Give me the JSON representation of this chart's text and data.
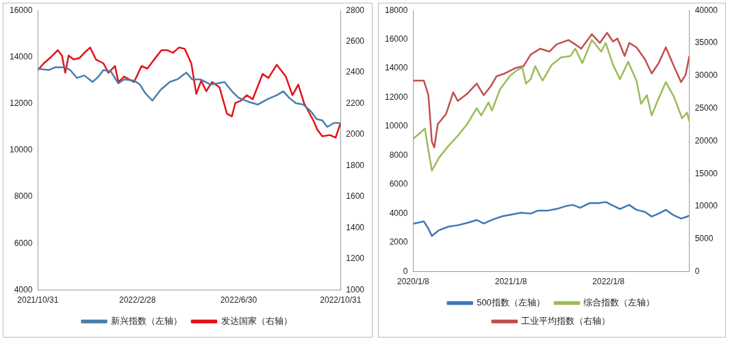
{
  "chart_data": [
    {
      "type": "line",
      "xlim": [
        "2021-10-31",
        "2022-10-31"
      ],
      "xticks": [
        {
          "value": "2021-10-31",
          "label": "2021/10/31"
        },
        {
          "value": "2022-02-28",
          "label": "2022/2/28"
        },
        {
          "value": "2022-06-30",
          "label": "2022/6/30"
        },
        {
          "value": "2022-10-31",
          "label": "2022/10/31"
        }
      ],
      "ylim": [
        4000,
        16000
      ],
      "yticks": [
        4000,
        6000,
        8000,
        10000,
        12000,
        14000,
        16000
      ],
      "y2lim": [
        1000,
        2800
      ],
      "y2ticks": [
        1000,
        1200,
        1400,
        1600,
        1800,
        2000,
        2200,
        2400,
        2600,
        2800
      ],
      "grid": false,
      "legend": "bottom",
      "series": [
        {
          "name": "新兴指数（左轴）",
          "color": "#4a7eab",
          "axis": "y",
          "x": [
            "2021-10-31",
            "2021-11-13",
            "2021-11-21",
            "2021-12-03",
            "2021-12-09",
            "2021-12-17",
            "2021-12-26",
            "2022-01-05",
            "2022-01-12",
            "2022-01-18",
            "2022-01-27",
            "2022-02-05",
            "2022-02-12",
            "2022-02-24",
            "2022-03-03",
            "2022-03-09",
            "2022-03-18",
            "2022-03-28",
            "2022-04-08",
            "2022-04-17",
            "2022-04-28",
            "2022-05-05",
            "2022-05-15",
            "2022-05-27",
            "2022-06-05",
            "2022-06-13",
            "2022-06-22",
            "2022-06-30",
            "2022-07-12",
            "2022-07-23",
            "2022-08-04",
            "2022-08-15",
            "2022-08-23",
            "2022-08-30",
            "2022-09-07",
            "2022-09-16",
            "2022-09-25",
            "2022-10-02",
            "2022-10-09",
            "2022-10-15",
            "2022-10-23",
            "2022-10-31"
          ],
          "values": [
            13500,
            13440,
            13560,
            13560,
            13440,
            13100,
            13210,
            12930,
            13160,
            13440,
            13380,
            12870,
            13040,
            12990,
            12820,
            12470,
            12130,
            12590,
            12930,
            13040,
            13330,
            13040,
            13040,
            12820,
            12870,
            12930,
            12530,
            12250,
            12080,
            11960,
            12190,
            12360,
            12530,
            12250,
            12020,
            11960,
            11680,
            11340,
            11280,
            11000,
            11170,
            11170
          ]
        },
        {
          "name": "发达国家（右轴）",
          "color": "#e3121b",
          "axis": "y2",
          "x": [
            "2021-10-31",
            "2021-11-07",
            "2021-11-16",
            "2021-11-24",
            "2021-11-29",
            "2021-12-03",
            "2021-12-07",
            "2021-12-13",
            "2021-12-20",
            "2021-12-26",
            "2022-01-02",
            "2022-01-09",
            "2022-01-18",
            "2022-01-24",
            "2022-02-01",
            "2022-02-05",
            "2022-02-12",
            "2022-02-24",
            "2022-03-05",
            "2022-03-12",
            "2022-03-19",
            "2022-03-29",
            "2022-04-05",
            "2022-04-12",
            "2022-04-19",
            "2022-04-26",
            "2022-05-04",
            "2022-05-10",
            "2022-05-16",
            "2022-05-22",
            "2022-05-29",
            "2022-06-07",
            "2022-06-16",
            "2022-06-22",
            "2022-06-26",
            "2022-07-03",
            "2022-07-10",
            "2022-07-17",
            "2022-07-29",
            "2022-08-05",
            "2022-08-15",
            "2022-08-26",
            "2022-09-03",
            "2022-09-10",
            "2022-09-17",
            "2022-09-29",
            "2022-10-03",
            "2022-10-09",
            "2022-10-18",
            "2022-10-25",
            "2022-10-31"
          ],
          "values": [
            2416,
            2459,
            2501,
            2544,
            2510,
            2399,
            2510,
            2484,
            2493,
            2527,
            2561,
            2484,
            2459,
            2399,
            2442,
            2339,
            2374,
            2339,
            2442,
            2425,
            2476,
            2544,
            2544,
            2527,
            2561,
            2553,
            2459,
            2263,
            2348,
            2280,
            2339,
            2305,
            2135,
            2118,
            2203,
            2220,
            2254,
            2228,
            2391,
            2365,
            2450,
            2374,
            2254,
            2322,
            2203,
            2083,
            2032,
            1990,
            1998,
            1981,
            2075
          ]
        }
      ]
    },
    {
      "type": "line",
      "xlim": [
        "2020-01-08",
        "2022-11-07"
      ],
      "xticks": [
        {
          "value": "2020-01-08",
          "label": "2020/1/8"
        },
        {
          "value": "2021-01-08",
          "label": "2021/1/8"
        },
        {
          "value": "2022-01-08",
          "label": "2022/1/8"
        }
      ],
      "ylim": [
        0,
        18000
      ],
      "yticks": [
        0,
        2000,
        4000,
        6000,
        8000,
        10000,
        12000,
        14000,
        16000,
        18000
      ],
      "y2lim": [
        0,
        40000
      ],
      "y2ticks": [
        0,
        5000,
        10000,
        15000,
        20000,
        25000,
        30000,
        35000,
        40000
      ],
      "grid": false,
      "legend": "bottom",
      "series": [
        {
          "name": "500指数（左轴）",
          "color": "#3f77b8",
          "axis": "y",
          "x": [
            "2020-01-08",
            "2020-02-17",
            "2020-03-05",
            "2020-03-18",
            "2020-04-14",
            "2020-05-19",
            "2020-06-23",
            "2020-07-28",
            "2020-09-02",
            "2020-09-28",
            "2020-11-02",
            "2020-12-07",
            "2021-01-07",
            "2021-02-16",
            "2021-03-23",
            "2021-04-18",
            "2021-05-23",
            "2021-06-28",
            "2021-08-02",
            "2021-08-28",
            "2021-09-24",
            "2021-10-29",
            "2021-12-03",
            "2021-12-29",
            "2022-01-29",
            "2022-02-20",
            "2022-03-27",
            "2022-04-23",
            "2022-05-24",
            "2022-06-19",
            "2022-07-15",
            "2022-08-11",
            "2022-09-06",
            "2022-10-07",
            "2022-10-24",
            "2022-11-07"
          ],
          "values": [
            3300,
            3460,
            2960,
            2460,
            2860,
            3100,
            3200,
            3360,
            3560,
            3320,
            3600,
            3820,
            3920,
            4060,
            4000,
            4200,
            4200,
            4320,
            4520,
            4600,
            4400,
            4720,
            4720,
            4800,
            4520,
            4320,
            4600,
            4260,
            4120,
            3800,
            4000,
            4260,
            3920,
            3660,
            3760,
            3860
          ]
        },
        {
          "name": "综合指数（左轴）",
          "color": "#9bbb59",
          "axis": "y",
          "x": [
            "2020-01-08",
            "2020-02-03",
            "2020-02-21",
            "2020-03-05",
            "2020-03-18",
            "2020-04-14",
            "2020-05-19",
            "2020-06-23",
            "2020-07-28",
            "2020-09-02",
            "2020-09-19",
            "2020-10-16",
            "2020-10-29",
            "2020-11-28",
            "2021-01-03",
            "2021-01-29",
            "2021-02-20",
            "2021-03-05",
            "2021-03-23",
            "2021-04-09",
            "2021-05-06",
            "2021-06-10",
            "2021-07-15",
            "2021-08-19",
            "2021-09-06",
            "2021-10-02",
            "2021-11-07",
            "2021-12-12",
            "2021-12-29",
            "2022-01-25",
            "2022-02-20",
            "2022-03-23",
            "2022-04-23",
            "2022-05-10",
            "2022-06-01",
            "2022-06-19",
            "2022-07-11",
            "2022-08-11",
            "2022-09-10",
            "2022-10-11",
            "2022-10-29",
            "2022-11-07"
          ],
          "values": [
            9160,
            9560,
            9860,
            8360,
            6960,
            7860,
            8660,
            9360,
            10160,
            11260,
            10760,
            11660,
            11100,
            12560,
            13460,
            13860,
            14060,
            12960,
            13260,
            14160,
            13160,
            14260,
            14760,
            14860,
            15360,
            14360,
            15960,
            15160,
            15760,
            14260,
            13260,
            14460,
            13160,
            11560,
            12160,
            10760,
            11760,
            13060,
            12060,
            10560,
            10960,
            10360
          ]
        },
        {
          "name": "工业平均指数（右轴）",
          "color": "#c0504d",
          "axis": "y2",
          "x": [
            "2020-01-08",
            "2020-02-17",
            "2020-03-05",
            "2020-03-18",
            "2020-03-27",
            "2020-04-09",
            "2020-05-10",
            "2020-06-06",
            "2020-06-23",
            "2020-07-28",
            "2020-09-02",
            "2020-09-28",
            "2020-10-24",
            "2020-11-15",
            "2020-12-16",
            "2021-01-29",
            "2021-02-24",
            "2021-03-23",
            "2021-04-27",
            "2021-06-01",
            "2021-06-28",
            "2021-08-11",
            "2021-09-06",
            "2021-09-28",
            "2021-11-07",
            "2021-12-07",
            "2022-01-03",
            "2022-01-25",
            "2022-02-11",
            "2022-03-10",
            "2022-03-27",
            "2022-04-23",
            "2022-05-24",
            "2022-06-19",
            "2022-07-15",
            "2022-08-11",
            "2022-09-10",
            "2022-10-07",
            "2022-10-24",
            "2022-11-07"
          ],
          "values": [
            29240,
            29240,
            27020,
            19900,
            19020,
            22580,
            24130,
            27460,
            26130,
            27240,
            28800,
            27020,
            28350,
            29910,
            30350,
            31240,
            31460,
            33240,
            34130,
            33690,
            34800,
            35460,
            34800,
            34130,
            36350,
            35020,
            36570,
            35240,
            35690,
            33020,
            35020,
            34350,
            32570,
            30350,
            31910,
            34350,
            31460,
            29020,
            30130,
            33020
          ]
        }
      ]
    }
  ]
}
